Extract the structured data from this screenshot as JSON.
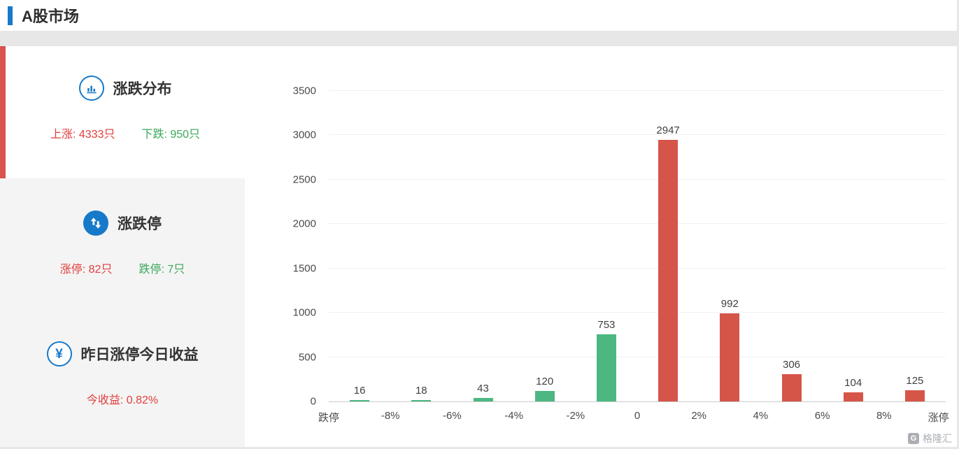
{
  "page": {
    "title": "A股市场"
  },
  "sidebar": {
    "sections": [
      {
        "icon": "bar-chart-icon",
        "title": "涨跌分布",
        "stats": [
          {
            "text": "上涨: 4333只",
            "color": "#e23d3c"
          },
          {
            "text": "下跌: 950只",
            "color": "#3aa75a"
          }
        ]
      },
      {
        "icon": "up-down-arrows-icon",
        "title": "涨跌停",
        "stats": [
          {
            "text": "涨停: 82只",
            "color": "#e23d3c"
          },
          {
            "text": "跌停: 7只",
            "color": "#3aa75a"
          }
        ]
      },
      {
        "icon": "yen-icon",
        "title": "昨日涨停今日收益",
        "yen_glyph": "¥",
        "stats": [
          {
            "text": "今收益: 0.82%",
            "color": "#e23d3c"
          }
        ]
      }
    ]
  },
  "chart_data": {
    "type": "bar",
    "title": "",
    "xlabel": "",
    "ylabel": "",
    "x_boundary_labels": [
      "跌停",
      "-8%",
      "-6%",
      "-4%",
      "-2%",
      "0",
      "2%",
      "4%",
      "6%",
      "8%",
      "涨停"
    ],
    "values": [
      16,
      18,
      43,
      120,
      753,
      2947,
      992,
      306,
      104,
      125
    ],
    "bar_colors": [
      "green",
      "green",
      "green",
      "green",
      "green",
      "red",
      "red",
      "red",
      "red",
      "red"
    ],
    "colors": {
      "green": "#4db782",
      "red": "#d65549"
    },
    "yticks": [
      0,
      500,
      1000,
      1500,
      2000,
      2500,
      3000,
      3500
    ],
    "ylim": [
      0,
      3500
    ],
    "grid": true,
    "legend_position": "none"
  },
  "watermark": {
    "logo_glyph": "G",
    "text": "格隆汇"
  }
}
